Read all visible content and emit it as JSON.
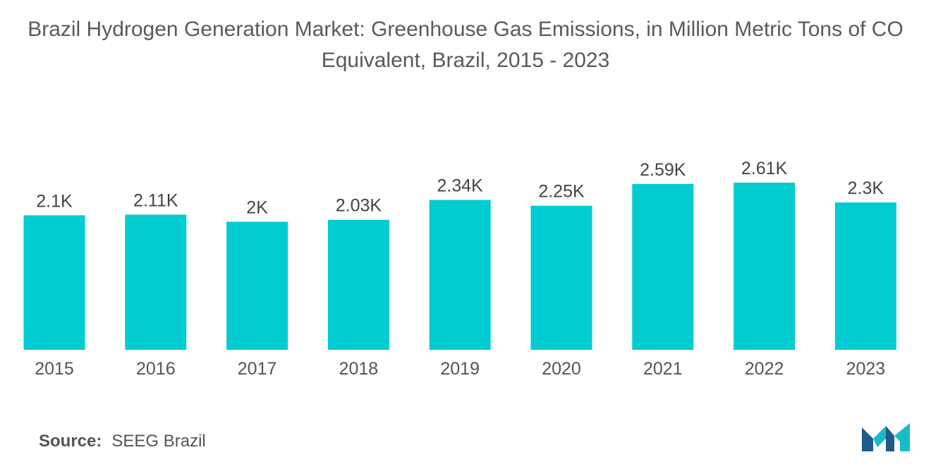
{
  "title": "Brazil Hydrogen Generation Market: Greenhouse Gas Emissions, in Million Metric Tons of CO Equivalent, Brazil, 2015 - 2023",
  "source": {
    "label": "Source:",
    "value": "SEEG Brazil"
  },
  "logo": {
    "name": "mordor-intelligence-logo",
    "colors": [
      "#1f5a8c",
      "#18bcc8"
    ]
  },
  "colors": {
    "bar": "#00ccd2"
  },
  "chart_data": {
    "type": "bar",
    "title": "Brazil Hydrogen Generation Market: Greenhouse Gas Emissions, in Million Metric Tons of CO Equivalent, Brazil, 2015 - 2023",
    "categories": [
      "2015",
      "2016",
      "2017",
      "2018",
      "2019",
      "2020",
      "2021",
      "2022",
      "2023"
    ],
    "values": [
      2100,
      2110,
      2000,
      2030,
      2340,
      2250,
      2590,
      2610,
      2300
    ],
    "value_labels": [
      "2.1K",
      "2.11K",
      "2K",
      "2.03K",
      "2.34K",
      "2.25K",
      "2.59K",
      "2.61K",
      "2.3K"
    ],
    "xlabel": "",
    "ylabel": "",
    "ylim": [
      0,
      2610
    ],
    "grid": false,
    "legend": "none"
  }
}
